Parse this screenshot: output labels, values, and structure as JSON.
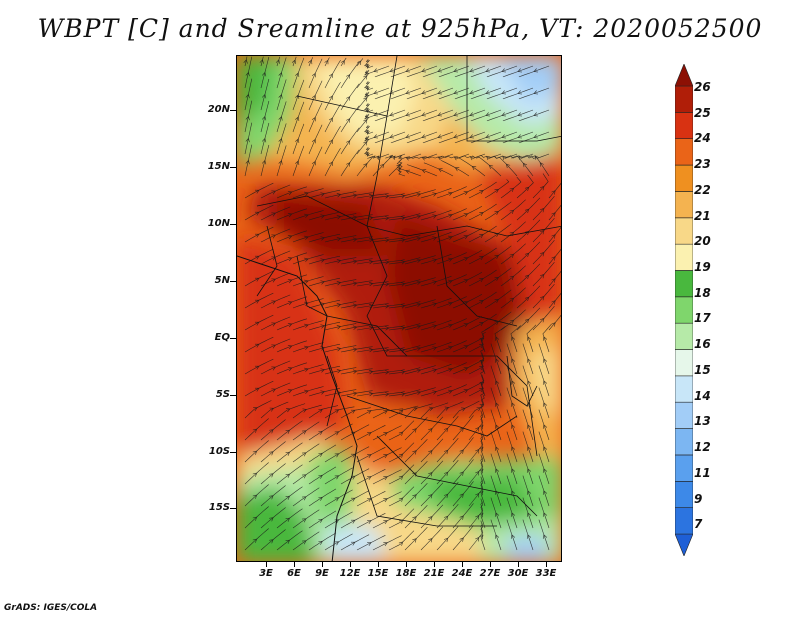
{
  "title": "WBPT [C] and Sreamline at 925hPa, VT: 2020052500",
  "footer": "GrADS: IGES/COLA",
  "latitude_labels": [
    "20N",
    "15N",
    "10N",
    "5N",
    "EQ",
    "5S",
    "10S",
    "15S"
  ],
  "longitude_labels": [
    "3E",
    "6E",
    "9E",
    "12E",
    "15E",
    "18E",
    "21E",
    "24E",
    "27E",
    "30E",
    "33E"
  ],
  "colorbar": {
    "labels": [
      "7",
      "9",
      "11",
      "12",
      "13",
      "14",
      "15",
      "16",
      "17",
      "18",
      "19",
      "20",
      "21",
      "22",
      "23",
      "24",
      "25",
      "26"
    ],
    "colors": [
      "#1e5fd6",
      "#2c74e0",
      "#3d89e8",
      "#5aa0ee",
      "#7cb6f2",
      "#a2cdf7",
      "#c8e6f8",
      "#e6f7ea",
      "#b6eaa8",
      "#7fd66c",
      "#49b83e",
      "#fbf1b0",
      "#f8d888",
      "#f4b350",
      "#ef9020",
      "#ea6418",
      "#d83212",
      "#b01e08",
      "#8c1004"
    ]
  },
  "map": {
    "field": "WBPT",
    "level": "925hPa",
    "valid_time": "2020052500"
  }
}
